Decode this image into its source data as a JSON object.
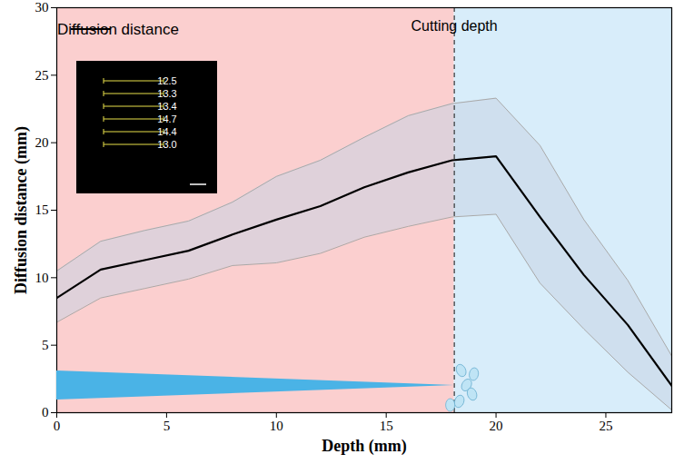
{
  "chart_data": {
    "type": "line",
    "x_label": "Depth (mm)",
    "y_label": "Diffusion distance (mm)",
    "x": [
      0,
      2,
      4,
      6,
      8,
      10,
      12,
      14,
      16,
      18,
      20,
      22,
      24,
      26,
      28
    ],
    "series": [
      {
        "name": "Diffusion distance",
        "color": "#000000",
        "values": [
          8.5,
          10.6,
          11.3,
          12.0,
          13.2,
          14.3,
          15.3,
          16.7,
          17.8,
          18.7,
          19.0,
          14.5,
          10.2,
          6.5,
          2.0
        ],
        "upper": [
          10.5,
          12.7,
          13.5,
          14.2,
          15.6,
          17.5,
          18.7,
          20.4,
          22.0,
          22.9,
          23.3,
          19.8,
          14.3,
          9.8,
          4.2
        ],
        "lower": [
          6.7,
          8.5,
          9.2,
          9.9,
          10.9,
          11.1,
          11.8,
          13.0,
          13.8,
          14.5,
          14.7,
          9.6,
          6.2,
          3.0,
          0.2
        ]
      }
    ],
    "xlim": [
      0,
      28
    ],
    "xticks": [
      0,
      5,
      10,
      15,
      20,
      25
    ],
    "ylim": [
      0,
      30
    ],
    "yticks": [
      0,
      5,
      10,
      15,
      20,
      25,
      30
    ],
    "cutting_depth": {
      "x": 18.1,
      "label": "Cutting depth"
    },
    "inset_labels": [
      "12.5",
      "13.3",
      "13.4",
      "14.7",
      "14.4",
      "13.0"
    ],
    "legend": "upper left",
    "grid": false
  }
}
